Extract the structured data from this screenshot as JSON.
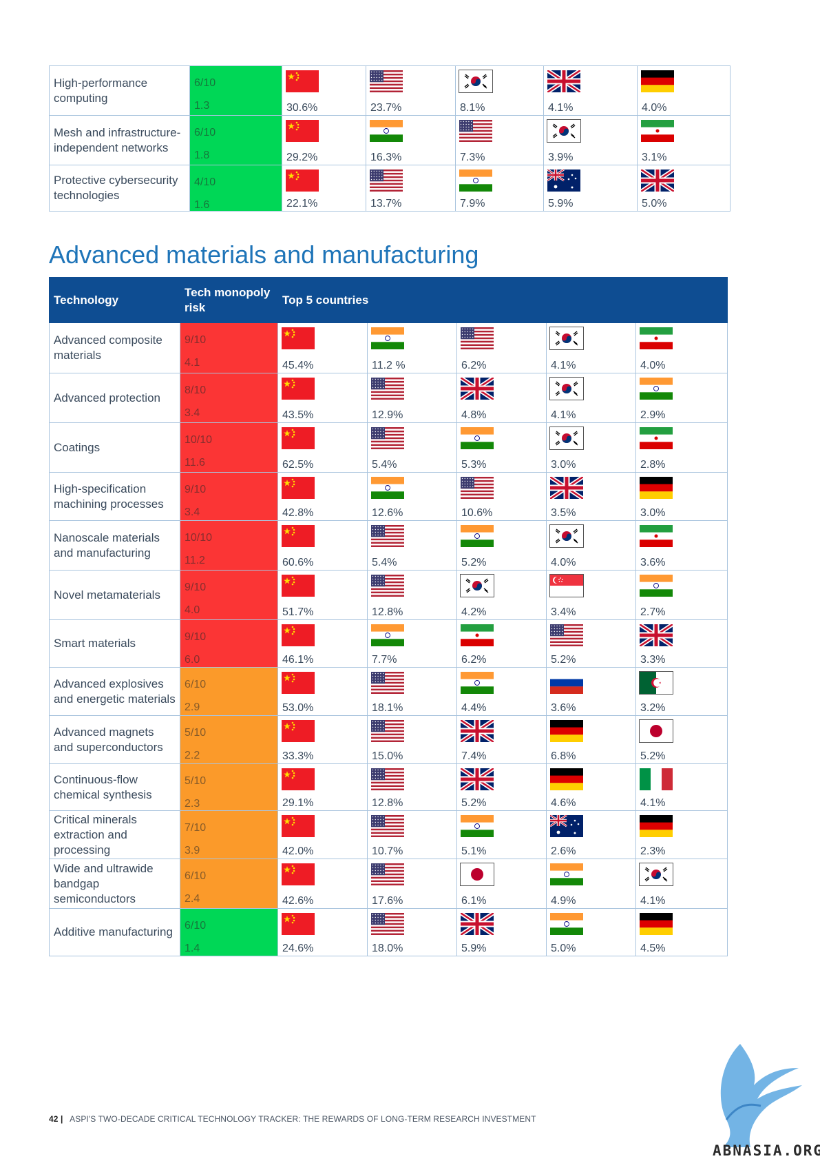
{
  "top_table": {
    "rows": [
      {
        "technology": "High-performance computing",
        "risk_score": "6/10",
        "risk_value": "1.3",
        "risk_level": "low",
        "countries": [
          {
            "flag": "CN",
            "pct": "30.6%"
          },
          {
            "flag": "US",
            "pct": "23.7%"
          },
          {
            "flag": "KR",
            "pct": "8.1%"
          },
          {
            "flag": "GB",
            "pct": "4.1%"
          },
          {
            "flag": "DE",
            "pct": "4.0%"
          }
        ]
      },
      {
        "technology": "Mesh and infrastructure-independent networks",
        "risk_score": "6/10",
        "risk_value": "1.8",
        "risk_level": "low",
        "countries": [
          {
            "flag": "CN",
            "pct": "29.2%"
          },
          {
            "flag": "IN",
            "pct": "16.3%"
          },
          {
            "flag": "US",
            "pct": "7.3%"
          },
          {
            "flag": "KR",
            "pct": "3.9%"
          },
          {
            "flag": "IR",
            "pct": "3.1%"
          }
        ]
      },
      {
        "technology": "Protective cybersecurity technologies",
        "risk_score": "4/10",
        "risk_value": "1.6",
        "risk_level": "low",
        "countries": [
          {
            "flag": "CN",
            "pct": "22.1%"
          },
          {
            "flag": "US",
            "pct": "13.7%"
          },
          {
            "flag": "IN",
            "pct": "7.9%"
          },
          {
            "flag": "AU",
            "pct": "5.9%"
          },
          {
            "flag": "GB",
            "pct": "5.0%"
          }
        ]
      }
    ]
  },
  "section_title": "Advanced materials and manufacturing",
  "main_table": {
    "headers": {
      "technology": "Technology",
      "risk": "Tech monopoly risk",
      "top5": "Top 5 countries"
    },
    "rows": [
      {
        "technology": "Advanced composite materials",
        "risk_score": "9/10",
        "risk_value": "4.1",
        "risk_level": "high",
        "countries": [
          {
            "flag": "CN",
            "pct": "45.4%"
          },
          {
            "flag": "IN",
            "pct": "11.2 %"
          },
          {
            "flag": "US",
            "pct": "6.2%"
          },
          {
            "flag": "KR",
            "pct": "4.1%"
          },
          {
            "flag": "IR",
            "pct": "4.0%"
          }
        ]
      },
      {
        "technology": "Advanced protection",
        "risk_score": "8/10",
        "risk_value": "3.4",
        "risk_level": "high",
        "countries": [
          {
            "flag": "CN",
            "pct": "43.5%"
          },
          {
            "flag": "US",
            "pct": "12.9%"
          },
          {
            "flag": "GB",
            "pct": "4.8%"
          },
          {
            "flag": "KR",
            "pct": "4.1%"
          },
          {
            "flag": "IN",
            "pct": "2.9%"
          }
        ]
      },
      {
        "technology": "Coatings",
        "risk_score": "10/10",
        "risk_value": "11.6",
        "risk_level": "high",
        "countries": [
          {
            "flag": "CN",
            "pct": "62.5%"
          },
          {
            "flag": "US",
            "pct": "5.4%"
          },
          {
            "flag": "IN",
            "pct": "5.3%"
          },
          {
            "flag": "KR",
            "pct": "3.0%"
          },
          {
            "flag": "IR",
            "pct": "2.8%"
          }
        ]
      },
      {
        "technology": "High-specification machining processes",
        "risk_score": "9/10",
        "risk_value": "3.4",
        "risk_level": "high",
        "countries": [
          {
            "flag": "CN",
            "pct": "42.8%"
          },
          {
            "flag": "IN",
            "pct": "12.6%"
          },
          {
            "flag": "US",
            "pct": "10.6%"
          },
          {
            "flag": "GB",
            "pct": "3.5%"
          },
          {
            "flag": "DE",
            "pct": "3.0%"
          }
        ]
      },
      {
        "technology": "Nanoscale materials and manufacturing",
        "risk_score": "10/10",
        "risk_value": "11.2",
        "risk_level": "high",
        "countries": [
          {
            "flag": "CN",
            "pct": "60.6%"
          },
          {
            "flag": "US",
            "pct": "5.4%"
          },
          {
            "flag": "IN",
            "pct": "5.2%"
          },
          {
            "flag": "KR",
            "pct": "4.0%"
          },
          {
            "flag": "IR",
            "pct": "3.6%"
          }
        ]
      },
      {
        "technology": "Novel metamaterials",
        "risk_score": "9/10",
        "risk_value": "4.0",
        "risk_level": "high",
        "countries": [
          {
            "flag": "CN",
            "pct": "51.7%"
          },
          {
            "flag": "US",
            "pct": "12.8%"
          },
          {
            "flag": "KR",
            "pct": "4.2%"
          },
          {
            "flag": "SG",
            "pct": "3.4%"
          },
          {
            "flag": "IN",
            "pct": "2.7%"
          }
        ]
      },
      {
        "technology": "Smart materials",
        "risk_score": "9/10",
        "risk_value": "6.0",
        "risk_level": "high",
        "countries": [
          {
            "flag": "CN",
            "pct": "46.1%"
          },
          {
            "flag": "IN",
            "pct": "7.7%"
          },
          {
            "flag": "IR",
            "pct": "6.2%"
          },
          {
            "flag": "US",
            "pct": "5.2%"
          },
          {
            "flag": "GB",
            "pct": "3.3%"
          }
        ]
      },
      {
        "technology": "Advanced explosives and energetic materials",
        "risk_score": "6/10",
        "risk_value": "2.9",
        "risk_level": "medium",
        "countries": [
          {
            "flag": "CN",
            "pct": "53.0%"
          },
          {
            "flag": "US",
            "pct": "18.1%"
          },
          {
            "flag": "IN",
            "pct": "4.4%"
          },
          {
            "flag": "RU",
            "pct": "3.6%"
          },
          {
            "flag": "DZ",
            "pct": "3.2%"
          }
        ]
      },
      {
        "technology": "Advanced magnets and superconductors",
        "risk_score": "5/10",
        "risk_value": "2.2",
        "risk_level": "medium",
        "countries": [
          {
            "flag": "CN",
            "pct": "33.3%"
          },
          {
            "flag": "US",
            "pct": "15.0%"
          },
          {
            "flag": "GB",
            "pct": "7.4%"
          },
          {
            "flag": "DE",
            "pct": "6.8%"
          },
          {
            "flag": "JP",
            "pct": "5.2%"
          }
        ]
      },
      {
        "technology": "Continuous-flow chemical synthesis",
        "risk_score": "5/10",
        "risk_value": "2.3",
        "risk_level": "medium",
        "countries": [
          {
            "flag": "CN",
            "pct": "29.1%"
          },
          {
            "flag": "US",
            "pct": "12.8%"
          },
          {
            "flag": "GB",
            "pct": "5.2%"
          },
          {
            "flag": "DE",
            "pct": "4.6%"
          },
          {
            "flag": "IT",
            "pct": "4.1%"
          }
        ]
      },
      {
        "technology": "Critical minerals extraction and processing",
        "risk_score": "7/10",
        "risk_value": "3.9",
        "risk_level": "medium",
        "countries": [
          {
            "flag": "CN",
            "pct": "42.0%"
          },
          {
            "flag": "US",
            "pct": "10.7%"
          },
          {
            "flag": "IN",
            "pct": "5.1%"
          },
          {
            "flag": "AU",
            "pct": "2.6%"
          },
          {
            "flag": "DE",
            "pct": "2.3%"
          }
        ]
      },
      {
        "technology": "Wide and ultrawide bandgap semiconductors",
        "risk_score": "6/10",
        "risk_value": "2.4",
        "risk_level": "medium",
        "countries": [
          {
            "flag": "CN",
            "pct": "42.6%"
          },
          {
            "flag": "US",
            "pct": "17.6%"
          },
          {
            "flag": "JP",
            "pct": "6.1%"
          },
          {
            "flag": "IN",
            "pct": "4.9%"
          },
          {
            "flag": "KR",
            "pct": "4.1%"
          }
        ]
      },
      {
        "technology": "Additive manufacturing",
        "risk_score": "6/10",
        "risk_value": "1.4",
        "risk_level": "low",
        "countries": [
          {
            "flag": "CN",
            "pct": "24.6%"
          },
          {
            "flag": "US",
            "pct": "18.0%"
          },
          {
            "flag": "GB",
            "pct": "5.9%"
          },
          {
            "flag": "IN",
            "pct": "5.0%"
          },
          {
            "flag": "DE",
            "pct": "4.5%"
          }
        ]
      }
    ]
  },
  "colors": {
    "high": "#fb3535",
    "medium": "#fb9a2a",
    "low": "#00d756",
    "header": "#0e4d92",
    "title": "#1e74b8"
  },
  "footer": {
    "page": "42",
    "text": "ASPI'S TWO-DECADE CRITICAL TECHNOLOGY TRACKER: THE REWARDS OF LONG-TERM RESEARCH INVESTMENT"
  },
  "logo": {
    "text": "ABNASIA.ORG"
  }
}
